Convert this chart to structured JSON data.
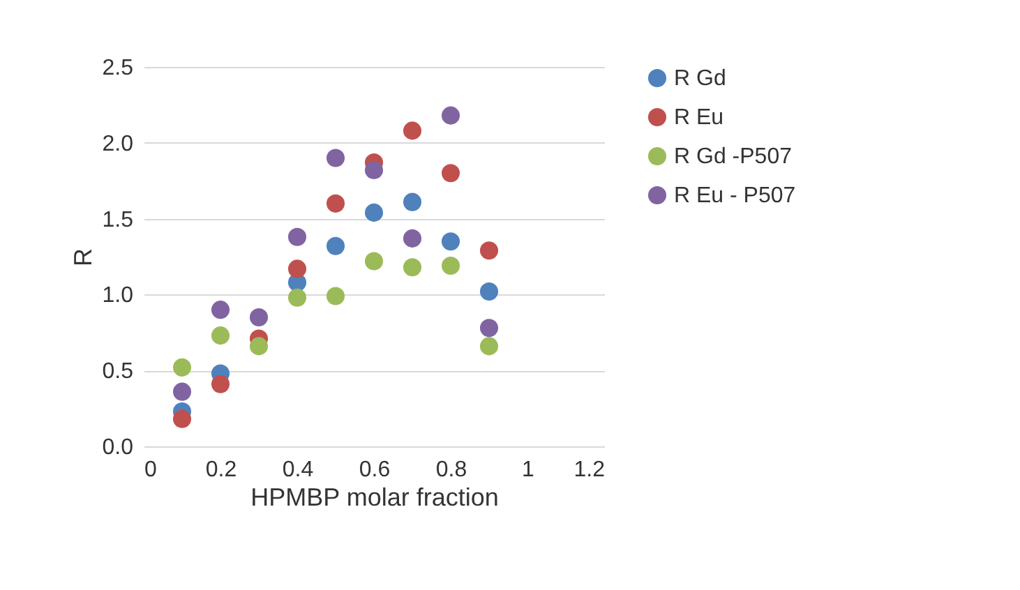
{
  "chart_data": {
    "type": "scatter",
    "xlabel": "HPMBP molar fraction",
    "ylabel": "R",
    "x": [
      0.1,
      0.2,
      0.3,
      0.4,
      0.5,
      0.6,
      0.7,
      0.8,
      0.9
    ],
    "series": [
      {
        "name": "R Gd",
        "color": "#4f81bd",
        "values": [
          0.23,
          0.48,
          null,
          1.08,
          1.32,
          1.54,
          1.61,
          1.35,
          1.02
        ]
      },
      {
        "name": "R Eu",
        "color": "#c0504d",
        "values": [
          0.18,
          0.41,
          0.71,
          1.17,
          1.6,
          1.87,
          2.08,
          1.8,
          1.29
        ]
      },
      {
        "name": "R Gd -P507",
        "color": "#9bbb59",
        "values": [
          0.52,
          0.73,
          0.66,
          0.98,
          0.99,
          1.22,
          1.18,
          1.19,
          0.66
        ]
      },
      {
        "name": "R Eu - P507",
        "color": "#8064a2",
        "values": [
          0.36,
          0.9,
          0.85,
          1.38,
          1.9,
          1.82,
          1.37,
          2.18,
          0.78
        ]
      }
    ],
    "xlim": [
      0,
      1.2
    ],
    "xticks": [
      0,
      0.2,
      0.4,
      0.6,
      0.8,
      1,
      1.2
    ],
    "ylim": [
      0,
      2.5
    ],
    "yticks": [
      {
        "value": 0,
        "label": "0.0"
      },
      {
        "value": 0.5,
        "label": "0.5"
      },
      {
        "value": 1,
        "label": "1.0"
      },
      {
        "value": 1.5,
        "label": "1.5"
      },
      {
        "value": 2,
        "label": "2.0"
      },
      {
        "value": 2.5,
        "label": "2.5"
      }
    ],
    "grid": "y",
    "legend": "right",
    "marker": "circle"
  }
}
